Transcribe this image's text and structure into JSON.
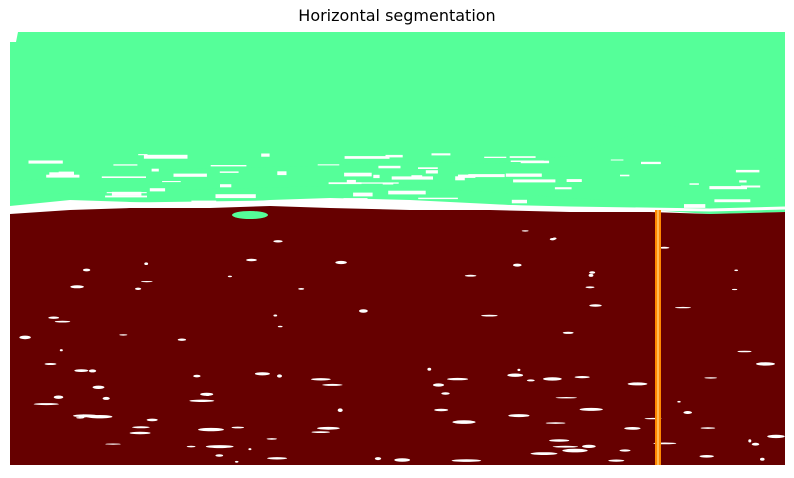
{
  "title": "Horizontal segmentation",
  "colors": {
    "sky": "#55ff99",
    "water": "#660000",
    "boundary": "#ffffff",
    "marker": "#ff8800",
    "marker_core": "#ffbb55"
  },
  "regions": [
    "sky",
    "water",
    "marker"
  ]
}
